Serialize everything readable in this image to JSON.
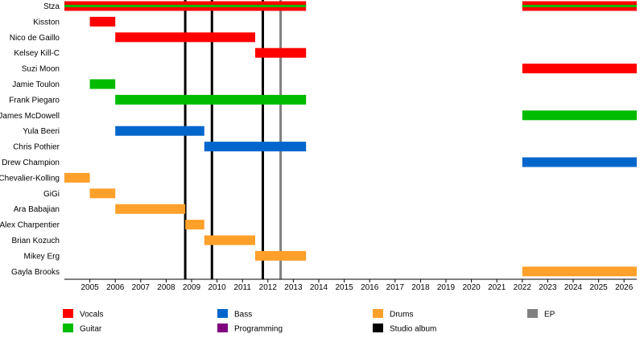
{
  "chart_data": {
    "type": "timeline",
    "title": "",
    "x_range": [
      2004.0,
      2026.5
    ],
    "years": [
      "2005",
      "2006",
      "2007",
      "2008",
      "2009",
      "2010",
      "2011",
      "2012",
      "2013",
      "2014",
      "2015",
      "2016",
      "2017",
      "2018",
      "2019",
      "2020",
      "2021",
      "2022",
      "2023",
      "2024",
      "2025",
      "2026"
    ],
    "members": [
      {
        "name": "Stza",
        "bars": [
          {
            "role": "Vocals",
            "start": 2004.0,
            "end": 2013.5,
            "secondary": "Guitar"
          },
          {
            "role": "Vocals",
            "start": 2022.0,
            "end": 2026.5,
            "secondary": "Guitar"
          }
        ]
      },
      {
        "name": "Kisston",
        "bars": [
          {
            "role": "Vocals",
            "start": 2005.0,
            "end": 2006.0
          }
        ]
      },
      {
        "name": "Nico de Gaillo",
        "bars": [
          {
            "role": "Vocals",
            "start": 2006.0,
            "end": 2011.5
          }
        ]
      },
      {
        "name": "Kelsey Kill-C",
        "bars": [
          {
            "role": "Vocals",
            "start": 2011.5,
            "end": 2013.5
          }
        ]
      },
      {
        "name": "Suzi Moon",
        "bars": [
          {
            "role": "Vocals",
            "start": 2022.0,
            "end": 2026.5
          }
        ]
      },
      {
        "name": "Jamie Toulon",
        "bars": [
          {
            "role": "Guitar",
            "start": 2005.0,
            "end": 2006.0
          }
        ]
      },
      {
        "name": "Frank Piegaro",
        "bars": [
          {
            "role": "Guitar",
            "start": 2006.0,
            "end": 2013.5
          }
        ]
      },
      {
        "name": "James McDowell",
        "bars": [
          {
            "role": "Guitar",
            "start": 2022.0,
            "end": 2026.5
          }
        ]
      },
      {
        "name": "Yula Beeri",
        "bars": [
          {
            "role": "Bass",
            "start": 2006.0,
            "end": 2009.5
          }
        ]
      },
      {
        "name": "Chris Pothier",
        "bars": [
          {
            "role": "Bass",
            "start": 2009.5,
            "end": 2013.5
          }
        ]
      },
      {
        "name": "Drew Champion",
        "bars": [
          {
            "role": "Bass",
            "start": 2022.0,
            "end": 2026.5
          }
        ]
      },
      {
        "name": "Chevalier-Kolling",
        "bars": [
          {
            "role": "Drums",
            "start": 2004.0,
            "end": 2005.0
          }
        ]
      },
      {
        "name": "GiGi",
        "bars": [
          {
            "role": "Drums",
            "start": 2005.0,
            "end": 2006.0
          }
        ]
      },
      {
        "name": "Ara Babajian",
        "bars": [
          {
            "role": "Drums",
            "start": 2006.0,
            "end": 2008.75
          }
        ]
      },
      {
        "name": "Alex Charpentier",
        "bars": [
          {
            "role": "Drums",
            "start": 2008.75,
            "end": 2009.5
          }
        ]
      },
      {
        "name": "Brian Kozuch",
        "bars": [
          {
            "role": "Drums",
            "start": 2009.5,
            "end": 2011.5
          }
        ]
      },
      {
        "name": "Mikey Erg",
        "bars": [
          {
            "role": "Drums",
            "start": 2011.5,
            "end": 2013.5
          }
        ]
      },
      {
        "name": "Gayla Brooks",
        "bars": [
          {
            "role": "Drums",
            "start": 2022.0,
            "end": 2026.5
          }
        ]
      }
    ],
    "release_lines": [
      {
        "type": "Studio album",
        "year": 2008.75
      },
      {
        "type": "Studio album",
        "year": 2009.8
      },
      {
        "type": "Studio album",
        "year": 2011.8
      },
      {
        "type": "EP",
        "year": 2012.5
      }
    ],
    "legend": [
      {
        "label": "Vocals",
        "color": "#ff0000"
      },
      {
        "label": "Guitar",
        "color": "#00bb00"
      },
      {
        "label": "Bass",
        "color": "#0066cc"
      },
      {
        "label": "Programming",
        "color": "#800080"
      },
      {
        "label": "Drums",
        "color": "#ffa02a"
      },
      {
        "label": "Studio album",
        "color": "#000000"
      },
      {
        "label": "EP",
        "color": "#808080"
      }
    ],
    "role_colors": {
      "Vocals": "#ff0000",
      "Guitar": "#00bb00",
      "Bass": "#0066cc",
      "Programming": "#800080",
      "Drums": "#ffa02a",
      "Studio album": "#000000",
      "EP": "#808080"
    }
  }
}
